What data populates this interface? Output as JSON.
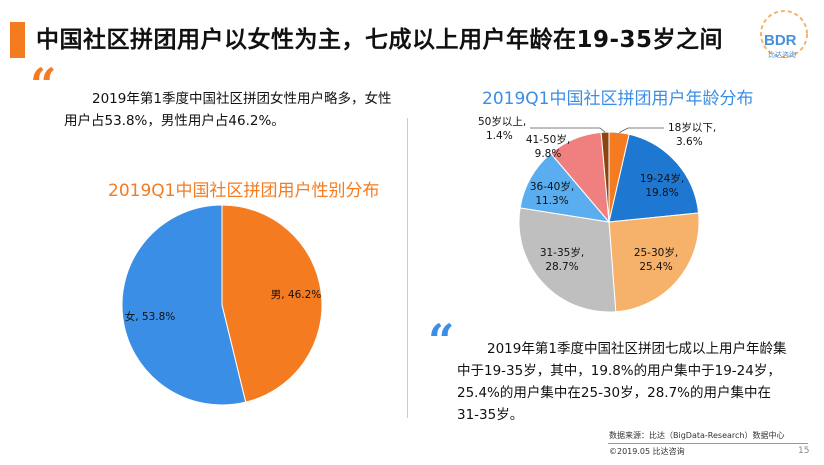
{
  "header": {
    "title": "中国社区拼团用户以女性为主，七成以上用户年龄在19-35岁之间"
  },
  "logo": {
    "name": "BDR",
    "sub": "比达咨询"
  },
  "quote_mark": "“",
  "text1": {
    "line1": "2019年第1季度中国社区拼团女性用户略多，女性",
    "line2": "用户占53.8%，男性用户占46.2%。"
  },
  "text2": {
    "line1": "2019年第1季度中国社区拼团七成以上用户年龄集",
    "line2": "中于19-35岁，其中，19.8%的用户集中于19-24岁，",
    "line3": "25.4%的用户集中在25-30岁，28.7%的用户集中在",
    "line4": "31-35岁。"
  },
  "source": "数据来源：比达（BigData-Research）数据中心",
  "footer": "©2019.05 比达咨询",
  "page_number": "15",
  "colors": {
    "accent_orange": "#f47b20",
    "accent_blue": "#3a8ee6"
  },
  "chart_data": [
    {
      "type": "pie",
      "title": "2019Q1中国社区拼团用户性别分布",
      "slices": [
        {
          "label": "男",
          "value": 46.2,
          "display": "男, 46.2%",
          "color": "#f47b20"
        },
        {
          "label": "女",
          "value": 53.8,
          "display": "女, 53.8%",
          "color": "#3a8ee6"
        }
      ]
    },
    {
      "type": "pie",
      "title": "2019Q1中国社区拼团用户年龄分布",
      "slices": [
        {
          "label": "18岁以下",
          "value": 3.6,
          "name": "18岁以下,",
          "pct": "3.6%",
          "color": "#f47b20"
        },
        {
          "label": "19-24岁",
          "value": 19.8,
          "name": "19-24岁,",
          "pct": "19.8%",
          "color": "#1e78d2"
        },
        {
          "label": "25-30岁",
          "value": 25.4,
          "name": "25-30岁,",
          "pct": "25.4%",
          "color": "#f6b26b"
        },
        {
          "label": "31-35岁",
          "value": 28.7,
          "name": "31-35岁,",
          "pct": "28.7%",
          "color": "#bfbfbf"
        },
        {
          "label": "36-40岁",
          "value": 11.3,
          "name": "36-40岁,",
          "pct": "11.3%",
          "color": "#5aaef0"
        },
        {
          "label": "41-50岁",
          "value": 9.8,
          "name": "41-50岁,",
          "pct": "9.8%",
          "color": "#f08080"
        },
        {
          "label": "50岁以上",
          "value": 1.4,
          "name": "50岁以上,",
          "pct": "1.4%",
          "color": "#8b4513"
        }
      ]
    }
  ]
}
